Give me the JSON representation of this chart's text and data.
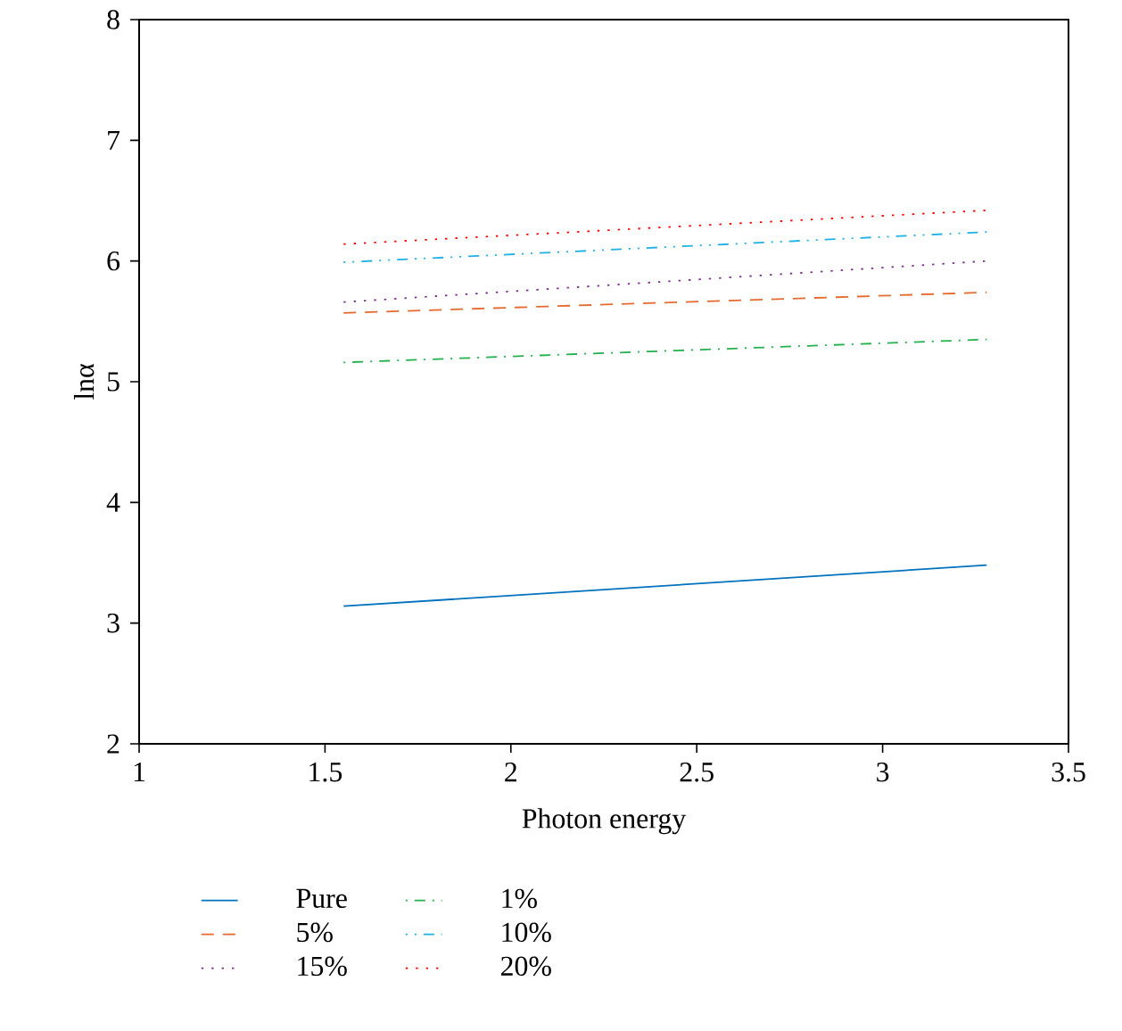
{
  "chart_data": {
    "type": "line",
    "xlabel": "Photon energy",
    "ylabel": "lnα",
    "x": [
      1.55,
      3.28
    ],
    "xlim": [
      1,
      3.5
    ],
    "ylim": [
      2,
      8
    ],
    "xticks": [
      1,
      1.5,
      2,
      2.5,
      3,
      3.5
    ],
    "yticks": [
      2,
      3,
      4,
      5,
      6,
      7,
      8
    ],
    "grid": false,
    "legend": "bottom left",
    "marker": "none",
    "series": [
      {
        "name": "Pure",
        "color": "#0072bd",
        "line_style": "solid",
        "values": [
          3.14,
          3.48
        ]
      },
      {
        "name": "1%",
        "color": "#22b14c",
        "line_style": "dashdot",
        "values": [
          5.16,
          5.35
        ]
      },
      {
        "name": "5%",
        "color": "#e8692c",
        "line_style": "dashed",
        "values": [
          5.57,
          5.74
        ]
      },
      {
        "name": "10%",
        "color": "#1fb0e6",
        "line_style": "dashdotdot",
        "values": [
          5.99,
          6.24
        ]
      },
      {
        "name": "15%",
        "color": "#7e2f8e",
        "line_style": "dotted",
        "values": [
          5.66,
          6.0
        ]
      },
      {
        "name": "20%",
        "color": "#ff0000",
        "line_style": "dotted",
        "values": [
          6.14,
          6.42
        ]
      }
    ]
  }
}
